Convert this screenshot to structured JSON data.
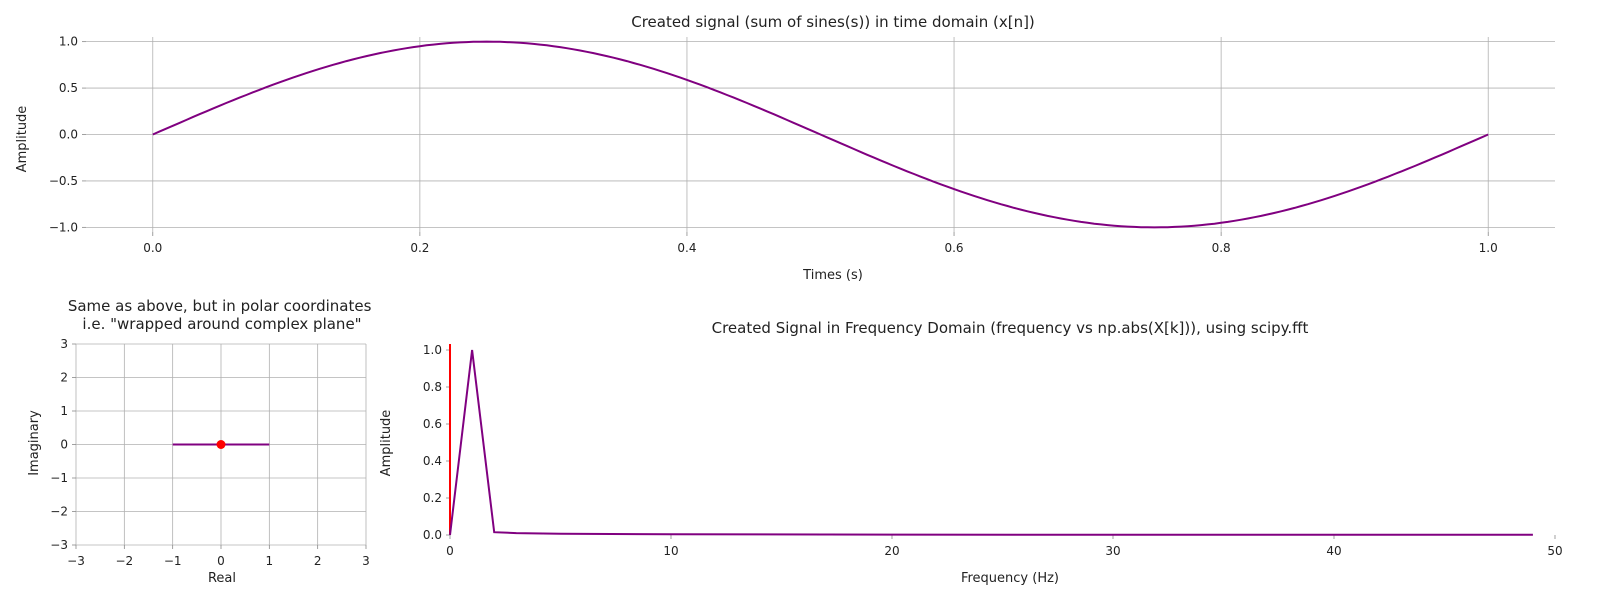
{
  "chart_data": [
    {
      "type": "line",
      "title": "Created signal (sum of sines(s)) in time domain (x[n])",
      "xlabel": "Times (s)",
      "ylabel": "Amplitude",
      "xlim": [
        -0.05,
        1.05
      ],
      "ylim": [
        -1.05,
        1.05
      ],
      "xticks": [
        0.0,
        0.2,
        0.4,
        0.6,
        0.8,
        1.0
      ],
      "xtick_labels": [
        "0.0",
        "0.2",
        "0.4",
        "0.6",
        "0.8",
        "1.0"
      ],
      "yticks": [
        1.0,
        0.5,
        0.0,
        -0.5,
        -1.0
      ],
      "ytick_labels": [
        "1.0",
        "0.5",
        "0.0",
        "−0.5",
        "−1.0"
      ],
      "grid": true,
      "color": "#800080",
      "x": [
        0.0,
        0.05,
        0.1,
        0.15,
        0.2,
        0.25,
        0.3,
        0.35,
        0.4,
        0.45,
        0.5,
        0.55,
        0.6,
        0.65,
        0.7,
        0.75,
        0.8,
        0.85,
        0.9,
        0.95,
        1.0
      ],
      "y": [
        0.0,
        0.309,
        0.588,
        0.809,
        0.951,
        1.0,
        0.951,
        0.809,
        0.588,
        0.309,
        0.0,
        -0.309,
        -0.588,
        -0.809,
        -0.951,
        -1.0,
        -0.951,
        -0.809,
        -0.588,
        -0.309,
        0.0
      ]
    },
    {
      "type": "line",
      "title": "Same as above, but in polar coordinates\ni.e. \"wrapped around complex plane\"",
      "xlabel": "Real",
      "ylabel": "Imaginary",
      "xlim": [
        -3,
        3
      ],
      "ylim": [
        -3,
        3
      ],
      "xticks": [
        -3,
        -2,
        -1,
        0,
        1,
        2,
        3
      ],
      "xtick_labels": [
        "−3",
        "−2",
        "−1",
        "0",
        "1",
        "2",
        "3"
      ],
      "yticks": [
        3,
        2,
        1,
        0,
        -1,
        -2,
        -3
      ],
      "ytick_labels": [
        "3",
        "2",
        "1",
        "0",
        "−1",
        "−2",
        "−3"
      ],
      "grid": true,
      "color": "#800080",
      "marker_color": "#ff0000",
      "x": [
        -1,
        1
      ],
      "y": [
        0,
        0
      ],
      "marker": {
        "x": 0,
        "y": 0
      }
    },
    {
      "type": "line",
      "title": "Created Signal in Frequency Domain (frequency vs np.abs(X[k])), using scipy.fft",
      "xlabel": "Frequency (Hz)",
      "ylabel": "Amplitude",
      "xlim": [
        0,
        50
      ],
      "ylim": [
        0,
        1.0
      ],
      "xticks": [
        0,
        10,
        20,
        30,
        40,
        50
      ],
      "xtick_labels": [
        "0",
        "10",
        "20",
        "30",
        "40",
        "50"
      ],
      "yticks": [
        1.0,
        0.8,
        0.6,
        0.4,
        0.2,
        0.0
      ],
      "ytick_labels": [
        "1.0",
        "0.8",
        "0.6",
        "0.4",
        "0.2",
        "0.0"
      ],
      "grid": false,
      "color": "#800080",
      "vline_color": "#ff0000",
      "vline_x": 0,
      "x": [
        0,
        1,
        2,
        3,
        5,
        10,
        20,
        30,
        40,
        49
      ],
      "y": [
        0.0,
        1.0,
        0.015,
        0.01,
        0.007,
        0.004,
        0.002,
        0.001,
        0.001,
        0.001
      ]
    }
  ]
}
